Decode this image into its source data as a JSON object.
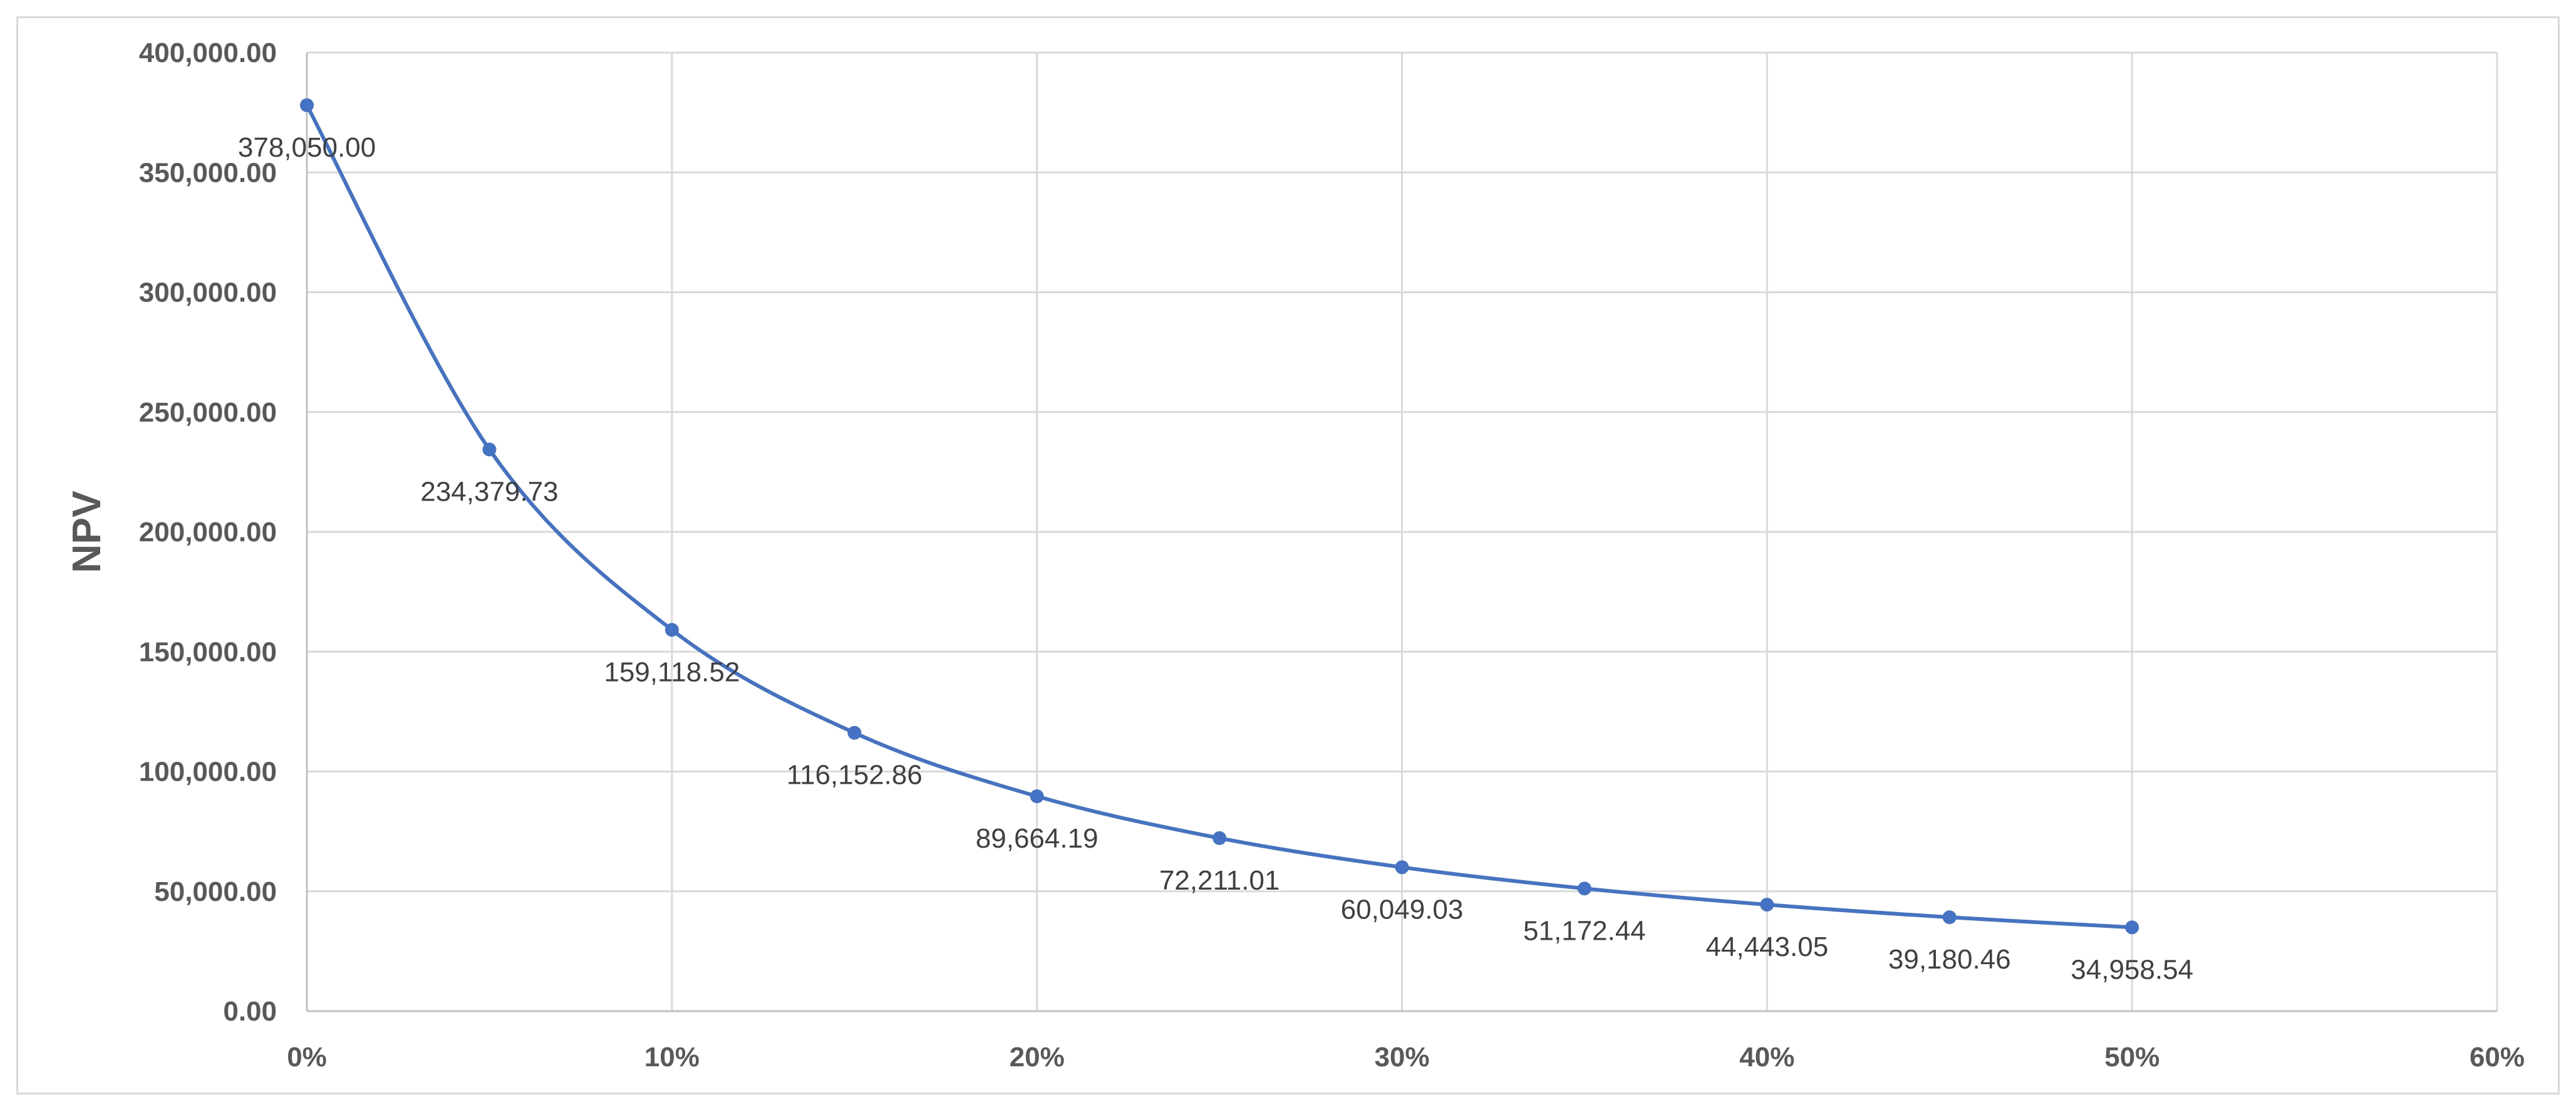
{
  "chart_data": {
    "type": "line",
    "xlabel": "",
    "ylabel": "NPV",
    "xlim": [
      0,
      0.6
    ],
    "ylim": [
      0,
      400000
    ],
    "x_ticks": [
      0,
      0.1,
      0.2,
      0.3,
      0.4,
      0.5,
      0.6
    ],
    "x_tick_labels": [
      "0%",
      "10%",
      "20%",
      "30%",
      "40%",
      "50%",
      "60%"
    ],
    "y_ticks": [
      0,
      50000,
      100000,
      150000,
      200000,
      250000,
      300000,
      350000,
      400000
    ],
    "y_tick_labels": [
      "0.00",
      "50,000.00",
      "100,000.00",
      "150,000.00",
      "200,000.00",
      "250,000.00",
      "300,000.00",
      "350,000.00",
      "400,000.00"
    ],
    "grid": true,
    "smooth": true,
    "color": "#4472C4",
    "series": [
      {
        "x": [
          0,
          0.05,
          0.1,
          0.15,
          0.2,
          0.25,
          0.3,
          0.35,
          0.4,
          0.45,
          0.5
        ],
        "values": [
          378050.0,
          234379.73,
          159118.52,
          116152.86,
          89664.19,
          72211.01,
          60049.03,
          51172.44,
          44443.05,
          39180.46,
          34958.54
        ],
        "labels": [
          "378,050.00",
          "234,379.73",
          "159,118.52",
          "116,152.86",
          "89,664.19",
          "72,211.01",
          "60,049.03",
          "51,172.44",
          "44,443.05",
          "39,180.46",
          "34,958.54"
        ]
      }
    ]
  }
}
